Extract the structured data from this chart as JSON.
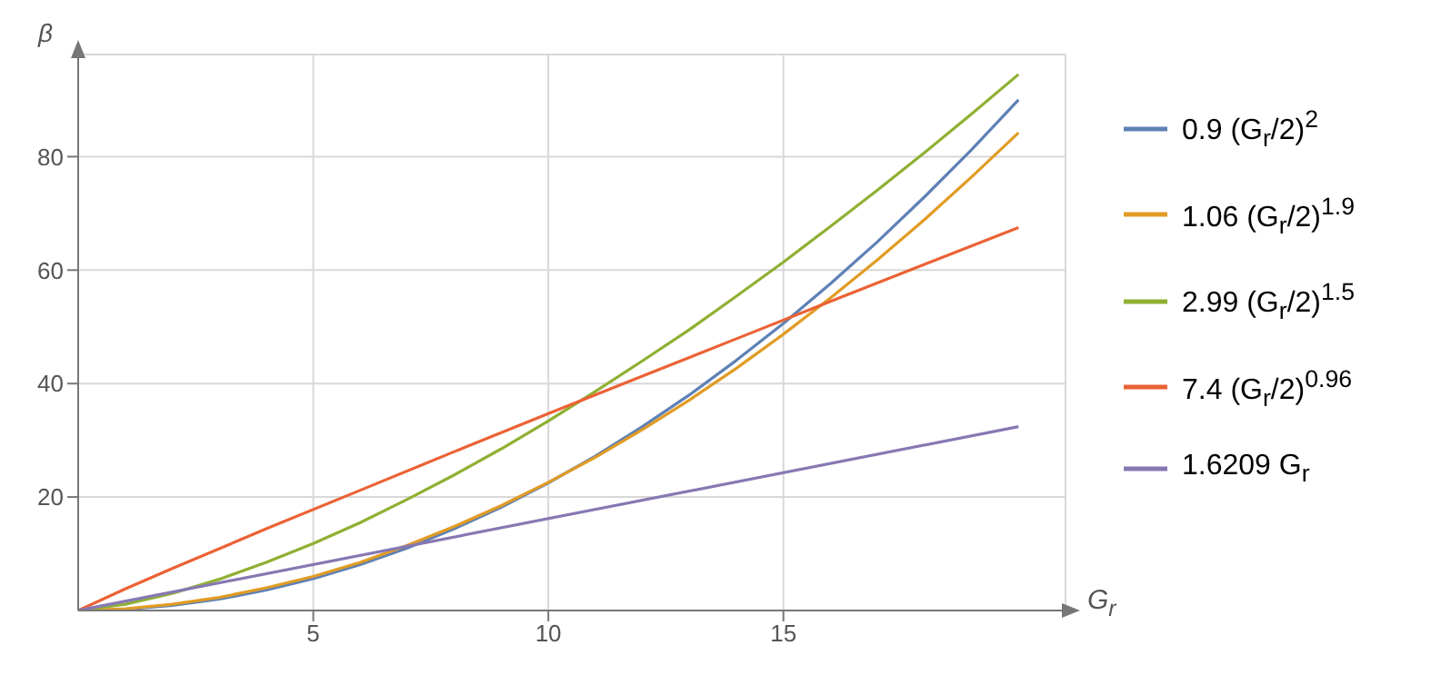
{
  "chart_data": {
    "type": "line",
    "xlabel": "G$_{r}$",
    "ylabel": "β",
    "xlim": [
      0,
      21
    ],
    "ylim": [
      0,
      98
    ],
    "xticks": [
      5,
      10,
      15
    ],
    "yticks": [
      20,
      40,
      60,
      80
    ],
    "grid": true,
    "legend": "right",
    "series": [
      {
        "name": "0.9 (G$_{r}$/2)$^{2}$",
        "color": "#5e81b5",
        "x": [
          0,
          1,
          2,
          3,
          4,
          5,
          6,
          7,
          8,
          9,
          10,
          11,
          12,
          13,
          14,
          15,
          16,
          17,
          18,
          19,
          20
        ],
        "values": [
          0,
          0.2,
          0.9,
          2.0,
          3.6,
          5.6,
          8.1,
          11.0,
          14.4,
          18.2,
          22.5,
          27.2,
          32.4,
          38.0,
          44.1,
          50.6,
          57.6,
          65.0,
          72.9,
          81.2,
          90.0
        ]
      },
      {
        "name": "1.06 (G$_{r}$/2)$^{1.9}$",
        "color": "#e19c24",
        "x": [
          0,
          1,
          2,
          3,
          4,
          5,
          6,
          7,
          8,
          9,
          10,
          11,
          12,
          13,
          14,
          15,
          16,
          17,
          18,
          19,
          20
        ],
        "values": [
          0,
          0.3,
          1.1,
          2.3,
          4.0,
          6.0,
          8.5,
          11.5,
          14.8,
          18.5,
          22.6,
          27.0,
          31.9,
          37.1,
          42.7,
          48.7,
          55.1,
          61.8,
          68.9,
          76.4,
          84.2
        ]
      },
      {
        "name": "2.99 (G$_{r}$/2)$^{1.5}$",
        "color": "#8fb032",
        "x": [
          0,
          1,
          2,
          3,
          4,
          5,
          6,
          7,
          8,
          9,
          10,
          11,
          12,
          13,
          14,
          15,
          16,
          17,
          18,
          19,
          20
        ],
        "values": [
          0,
          1.1,
          3.0,
          5.5,
          8.5,
          11.8,
          15.5,
          19.6,
          23.9,
          28.5,
          33.4,
          38.6,
          44.0,
          49.5,
          55.4,
          61.4,
          67.7,
          74.1,
          80.7,
          87.5,
          94.5
        ]
      },
      {
        "name": "7.4 (G$_{r}$/2)$^{0.96}$",
        "color": "#eb6235",
        "x": [
          0,
          1,
          2,
          4,
          6,
          8,
          10,
          12,
          14,
          16,
          18,
          20
        ],
        "values": [
          0,
          3.8,
          7.4,
          14.4,
          21.2,
          28.0,
          34.7,
          41.3,
          47.9,
          54.5,
          61.0,
          67.5
        ]
      },
      {
        "name": "1.6209 G$_{r}$",
        "color": "#8778b3",
        "x": [
          0,
          20
        ],
        "values": [
          0,
          32.4
        ]
      }
    ]
  }
}
